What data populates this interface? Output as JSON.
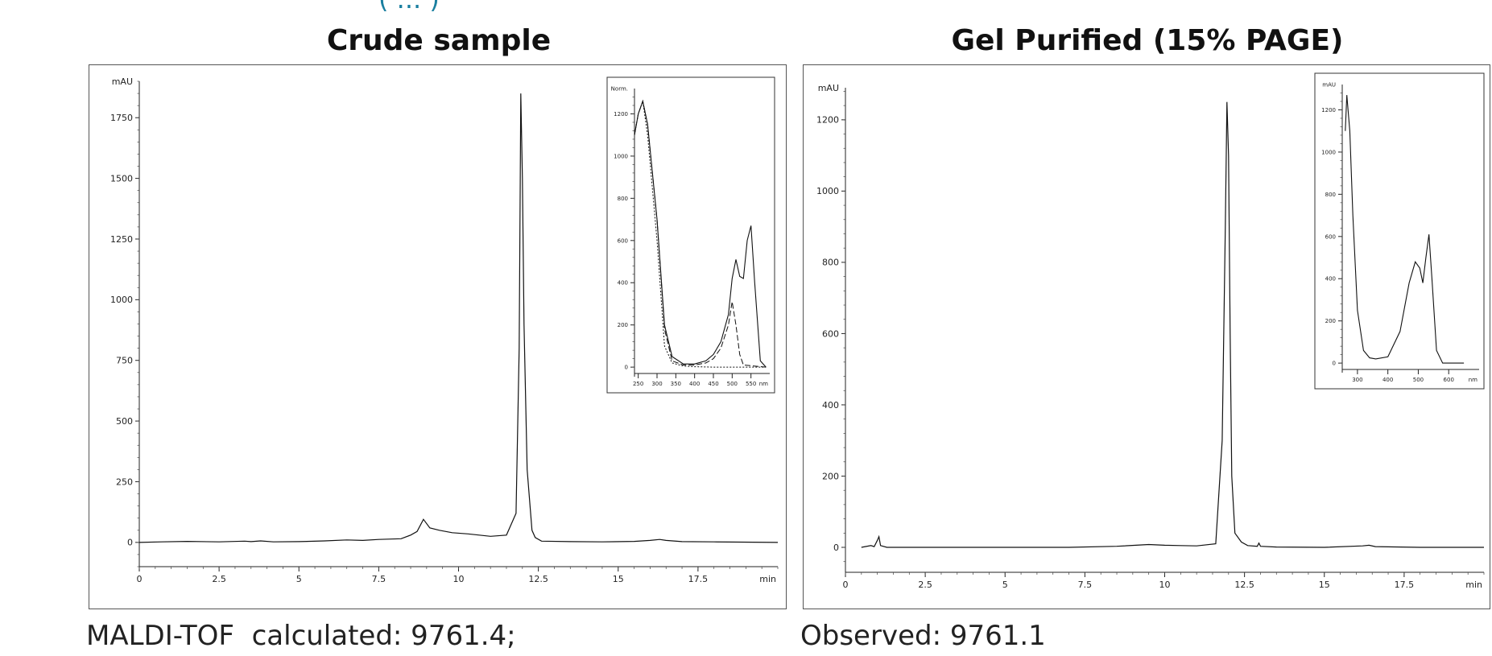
{
  "header_strip": "( ... )",
  "panels": [
    {
      "title": "Crude sample"
    },
    {
      "title": "Gel Purified (15% PAGE)"
    }
  ],
  "captions": {
    "left": "MALDI-TOF  calculated: 9761.4;",
    "right": "Observed: 9761.1"
  },
  "chart_data": [
    {
      "type": "line",
      "title": "Crude sample",
      "xlabel": "min",
      "ylabel": "mAU",
      "xlim": [
        0,
        20
      ],
      "ylim": [
        -100,
        1900
      ],
      "xticks": [
        "0",
        "2.5",
        "5",
        "7.5",
        "10",
        "12.5",
        "15",
        "17.5"
      ],
      "yticks": [
        "0",
        "250",
        "500",
        "750",
        "1000",
        "1250",
        "1500",
        "1750"
      ],
      "series": [
        {
          "x": [
            0,
            0.7,
            1.5,
            2.5,
            3.3,
            3.5,
            3.8,
            4.2,
            5.0,
            5.8,
            6.5,
            7.0,
            7.5,
            8.2,
            8.5,
            8.7,
            8.9,
            9.1,
            9.4,
            9.8,
            10.3,
            11.0,
            11.5,
            11.8,
            11.9,
            11.95,
            12.0,
            12.05,
            12.15,
            12.3,
            12.4,
            12.6,
            13.5,
            14.5,
            15.5,
            16.0,
            16.3,
            16.5,
            17.0,
            18.0,
            20.0
          ],
          "y": [
            0,
            2,
            4,
            2,
            5,
            3,
            6,
            2,
            3,
            6,
            10,
            8,
            12,
            15,
            30,
            45,
            95,
            60,
            50,
            40,
            35,
            25,
            30,
            120,
            800,
            1850,
            1500,
            900,
            300,
            50,
            20,
            5,
            3,
            2,
            4,
            8,
            12,
            8,
            3,
            2,
            0
          ]
        }
      ],
      "inset": {
        "xlabel": "nm",
        "ylabel": "Norm.",
        "xlim": [
          240,
          600
        ],
        "ylim": [
          -30,
          1320
        ],
        "xticks": [
          "250",
          "300",
          "350",
          "400",
          "450",
          "500",
          "550",
          "nm"
        ],
        "yticks": [
          "0",
          "200",
          "400",
          "600",
          "800",
          "1000",
          "1200"
        ],
        "series": [
          {
            "x": [
              240,
              250,
              262,
              275,
              300,
              320,
              340,
              370,
              400,
              430,
              450,
              470,
              490,
              500,
              510,
              520,
              530,
              540,
              550,
              560,
              575,
              590
            ],
            "y": [
              1100,
              1200,
              1260,
              1150,
              700,
              200,
              50,
              15,
              15,
              30,
              60,
              120,
              250,
              420,
              510,
              430,
              420,
              600,
              670,
              400,
              30,
              0
            ]
          },
          {
            "x": [
              240,
              250,
              262,
              275,
              300,
              320,
              340,
              370,
              400,
              430,
              450,
              470,
              490,
              500,
              510,
              520,
              530,
              590
            ],
            "y": [
              1100,
              1200,
              1260,
              1150,
              700,
              180,
              30,
              10,
              10,
              20,
              40,
              90,
              200,
              310,
              200,
              60,
              10,
              0
            ]
          },
          {
            "x": [
              240,
              250,
              262,
              275,
              300,
              320,
              340,
              370,
              400,
              450,
              500,
              550,
              590
            ],
            "y": [
              1100,
              1200,
              1260,
              1100,
              600,
              100,
              20,
              5,
              2,
              0,
              0,
              0,
              0
            ]
          }
        ]
      }
    },
    {
      "type": "line",
      "title": "Gel Purified (15% PAGE)",
      "xlabel": "min",
      "ylabel": "mAU",
      "xlim": [
        0,
        20
      ],
      "ylim": [
        -70,
        1290
      ],
      "xticks": [
        "0",
        "2.5",
        "5",
        "7.5",
        "10",
        "12.5",
        "15",
        "17.5"
      ],
      "yticks": [
        "0",
        "200",
        "400",
        "600",
        "800",
        "1000",
        "1200"
      ],
      "series": [
        {
          "x": [
            0.5,
            0.8,
            0.9,
            1.0,
            1.05,
            1.1,
            1.3,
            3.0,
            5.0,
            7.0,
            8.5,
            9.5,
            10.0,
            10.5,
            11.0,
            11.6,
            11.8,
            11.9,
            11.95,
            12.0,
            12.05,
            12.1,
            12.2,
            12.4,
            12.6,
            12.9,
            12.95,
            13.0,
            13.5,
            15.0,
            16.2,
            16.4,
            16.6,
            18.0,
            20.0
          ],
          "y": [
            0,
            5,
            2,
            20,
            30,
            5,
            0,
            0,
            0,
            0,
            3,
            8,
            6,
            5,
            4,
            10,
            300,
            900,
            1250,
            1100,
            600,
            200,
            40,
            15,
            5,
            3,
            12,
            3,
            1,
            0,
            4,
            6,
            2,
            0,
            0
          ]
        }
      ],
      "inset": {
        "xlabel": "nm",
        "ylabel": "mAU",
        "xlim": [
          250,
          700
        ],
        "ylim": [
          -30,
          1320
        ],
        "xticks": [
          "300",
          "400",
          "500",
          "600",
          "nm"
        ],
        "yticks": [
          "0",
          "200",
          "400",
          "600",
          "800",
          "1000",
          "1200"
        ],
        "series": [
          {
            "x": [
              260,
              265,
              275,
              285,
              300,
              320,
              340,
              360,
              400,
              440,
              470,
              490,
              505,
              515,
              525,
              535,
              545,
              560,
              580,
              650
            ],
            "y": [
              1100,
              1270,
              1100,
              700,
              250,
              60,
              25,
              20,
              30,
              150,
              380,
              480,
              450,
              380,
              500,
              610,
              400,
              60,
              0,
              0
            ]
          }
        ]
      }
    }
  ]
}
